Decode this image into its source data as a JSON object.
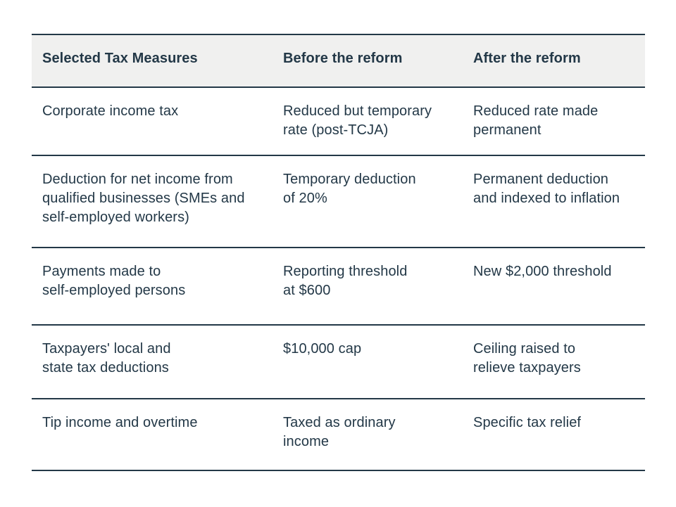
{
  "chart_data": {
    "type": "table",
    "title": "",
    "columns": [
      "Selected Tax Measures",
      "Before the reform",
      "After the reform"
    ],
    "rows": [
      [
        "Corporate income tax",
        "Reduced but temporary rate (post-TCJA)",
        "Reduced rate made permanent"
      ],
      [
        "Deduction for net income from qualified businesses (SMEs and self-employed workers)",
        "Temporary deduction of 20%",
        "Permanent deduction and indexed to inflation"
      ],
      [
        "Payments made to self-employed persons",
        "Reporting threshold at $600",
        "New $2,000 threshold"
      ],
      [
        "Taxpayers' local and state tax deductions",
        "$10,000 cap",
        "Ceiling raised to relieve taxpayers"
      ],
      [
        "Tip income and overtime",
        "Taxed as ordinary income",
        "Specific tax relief"
      ]
    ],
    "layout": {
      "header_background": "#f0f0ef",
      "grid": "horizontal-rules-only"
    }
  },
  "display": {
    "headers": [
      "Selected Tax Measures",
      "Before the reform",
      "After the reform"
    ],
    "rows": [
      [
        "Corporate income tax",
        "Reduced but temporary\nrate (post-TCJA)",
        "Reduced rate made\npermanent"
      ],
      [
        "Deduction for net income from\nqualified businesses (SMEs and\nself-employed workers)",
        "Temporary deduction\nof 20%",
        "Permanent deduction\nand indexed to inflation"
      ],
      [
        "Payments made to\nself-employed persons",
        "Reporting threshold\nat $600",
        "New $2,000 threshold"
      ],
      [
        "Taxpayers' local and\nstate tax deductions",
        "$10,000 cap",
        "Ceiling raised to\nrelieve taxpayers"
      ],
      [
        "Tip income and overtime",
        "Taxed as ordinary\nincome",
        "Specific tax relief"
      ]
    ]
  },
  "colors": {
    "text": "#233847",
    "border": "#233847",
    "header_background": "#f0f0ef",
    "page_background": "#ffffff"
  }
}
